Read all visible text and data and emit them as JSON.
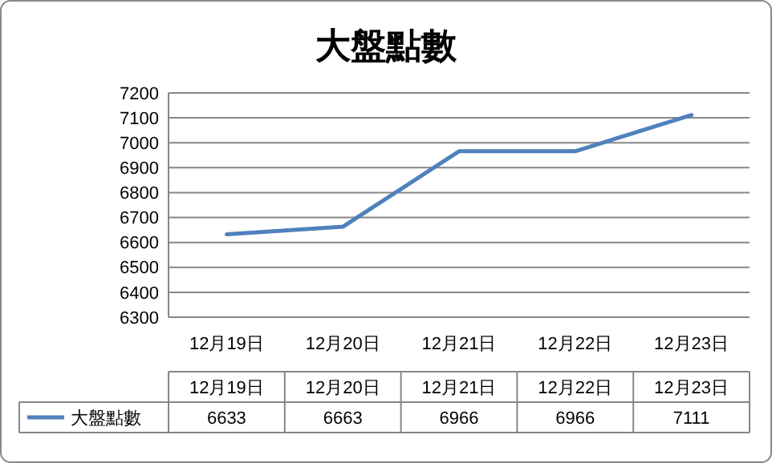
{
  "chart_data": {
    "type": "line",
    "title": "大盤點數",
    "categories": [
      "12月19日",
      "12月20日",
      "12月21日",
      "12月22日",
      "12月23日"
    ],
    "series": [
      {
        "name": "大盤點數",
        "color": "#4f81bd",
        "values": [
          6633,
          6663,
          6966,
          6966,
          7111
        ]
      }
    ],
    "ylim": [
      6300,
      7200
    ],
    "yticks": [
      6300,
      6400,
      6500,
      6600,
      6700,
      6800,
      6900,
      7000,
      7100,
      7200
    ],
    "grid": "y",
    "data_labels": true,
    "legend": "bottom",
    "marker": "none",
    "line_style": "solid"
  }
}
